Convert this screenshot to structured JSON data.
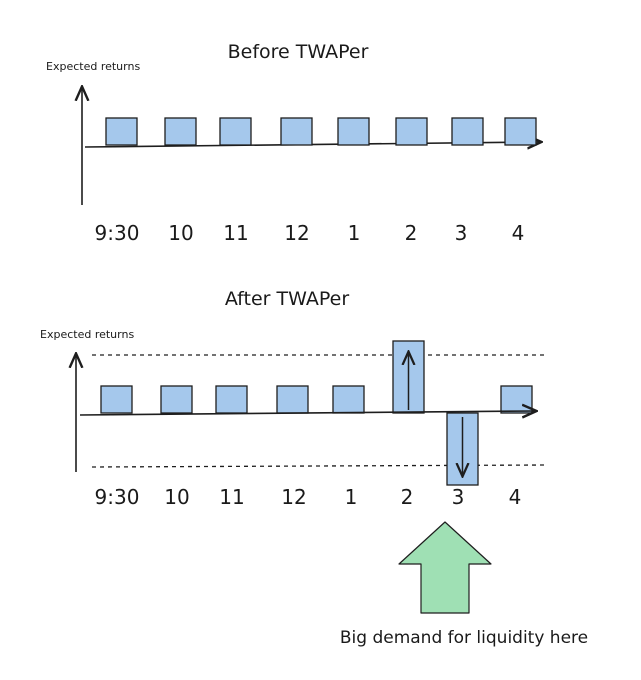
{
  "colors": {
    "bar_fill": "#a5c8ec",
    "bar_stroke": "#1e1e1e",
    "line": "#1e1e1e",
    "big_arrow_fill": "#9fe0b4",
    "big_arrow_stroke": "#1e1e1e"
  },
  "top_panel": {
    "title": "Before TWAPer",
    "y_label": "Expected returns",
    "ticks": [
      "9:30",
      "10",
      "11",
      "12",
      "1",
      "2",
      "3",
      "4"
    ],
    "levels": [
      "normal",
      "normal",
      "normal",
      "normal",
      "normal",
      "normal",
      "normal",
      "normal"
    ],
    "has_threshold_lines": false
  },
  "bottom_panel": {
    "title": "After TWAPer",
    "y_label": "Expected returns",
    "ticks": [
      "9:30",
      "10",
      "11",
      "12",
      "1",
      "2",
      "3",
      "4"
    ],
    "levels": [
      "normal",
      "normal",
      "normal",
      "normal",
      "normal",
      "high",
      "low",
      "normal"
    ],
    "has_threshold_lines": true
  },
  "annotation": {
    "icon": "up-arrow-icon",
    "text": "Big demand for liquidity here"
  }
}
